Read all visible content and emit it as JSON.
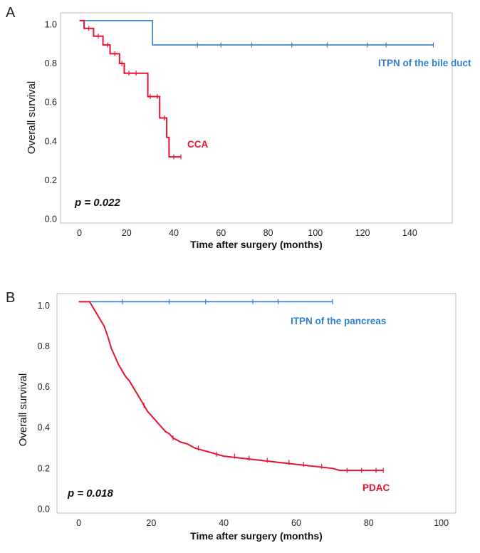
{
  "chart_data": [
    {
      "type": "line",
      "panel_label": "A",
      "xlabel": "Time after surgery (months)",
      "ylabel": "Overall survival",
      "xlim": [
        -8,
        158
      ],
      "ylim": [
        -0.02,
        1.06
      ],
      "x_ticks": [
        0,
        20,
        40,
        60,
        80,
        100,
        120,
        140
      ],
      "y_ticks": [
        0.0,
        0.2,
        0.4,
        0.6,
        0.8,
        1.0
      ],
      "x_tick_labels": [
        "0",
        "20",
        "40",
        "60",
        "80",
        "100",
        "120",
        "140"
      ],
      "y_tick_labels": [
        "0.0",
        "0.2",
        "0.4",
        "0.6",
        "0.8",
        "1.0"
      ],
      "annotation": "p = 0.022",
      "series": [
        {
          "name": "ITPN of the bile duct",
          "color": "#2E7FD0",
          "x": [
            0,
            31,
            31,
            150
          ],
          "y": [
            1.02,
            1.02,
            0.895,
            0.895
          ],
          "censor_x": [
            50,
            60,
            73,
            90,
            105,
            122,
            130,
            150
          ],
          "censor_y": [
            0.895,
            0.895,
            0.895,
            0.895,
            0.895,
            0.895,
            0.895,
            0.895
          ]
        },
        {
          "name": "CCA",
          "color": "#E8112D",
          "x": [
            0,
            2,
            2,
            6,
            6,
            10,
            10,
            13,
            13,
            17,
            17,
            19,
            19,
            29,
            29,
            34,
            34,
            37,
            37,
            38,
            38,
            43
          ],
          "y": [
            1.02,
            1.02,
            0.98,
            0.98,
            0.94,
            0.94,
            0.895,
            0.895,
            0.85,
            0.85,
            0.8,
            0.8,
            0.75,
            0.75,
            0.63,
            0.63,
            0.52,
            0.52,
            0.42,
            0.42,
            0.32,
            0.32
          ],
          "censor_x": [
            4,
            8,
            12,
            15,
            18,
            21,
            24,
            30,
            33,
            36,
            40,
            43
          ],
          "censor_y": [
            0.98,
            0.94,
            0.895,
            0.85,
            0.8,
            0.75,
            0.75,
            0.63,
            0.63,
            0.52,
            0.32,
            0.32
          ]
        }
      ]
    },
    {
      "type": "line",
      "panel_label": "B",
      "xlabel": "Time after surgery (months)",
      "ylabel": "Overall survival",
      "xlim": [
        -6,
        104
      ],
      "ylim": [
        -0.02,
        1.06
      ],
      "x_ticks": [
        0,
        20,
        40,
        60,
        80,
        100
      ],
      "y_ticks": [
        0.0,
        0.2,
        0.4,
        0.6,
        0.8,
        1.0
      ],
      "x_tick_labels": [
        "0",
        "20",
        "40",
        "60",
        "80",
        "100"
      ],
      "y_tick_labels": [
        "0.0",
        "0.2",
        "0.4",
        "0.6",
        "0.8",
        "1.0"
      ],
      "annotation": "p = 0.018",
      "series": [
        {
          "name": "ITPN of the pancreas",
          "color": "#2E7FD0",
          "x": [
            0,
            70
          ],
          "y": [
            1.02,
            1.02
          ],
          "censor_x": [
            12,
            25,
            35,
            48,
            55,
            70
          ],
          "censor_y": [
            1.02,
            1.02,
            1.02,
            1.02,
            1.02,
            1.02
          ]
        },
        {
          "name": "PDAC",
          "color": "#E8112D",
          "x": [
            0,
            3,
            5,
            6,
            7,
            8,
            9,
            10,
            11,
            12,
            13,
            14,
            15,
            16,
            17,
            18,
            19,
            20,
            21,
            22,
            23,
            24,
            25,
            26,
            27,
            28,
            30,
            32,
            34,
            36,
            38,
            40,
            45,
            50,
            55,
            60,
            65,
            70,
            72,
            80,
            84
          ],
          "y": [
            1.02,
            1.02,
            0.96,
            0.93,
            0.9,
            0.85,
            0.79,
            0.75,
            0.71,
            0.68,
            0.65,
            0.63,
            0.6,
            0.57,
            0.54,
            0.51,
            0.48,
            0.46,
            0.44,
            0.42,
            0.4,
            0.38,
            0.37,
            0.35,
            0.34,
            0.33,
            0.32,
            0.3,
            0.29,
            0.28,
            0.27,
            0.26,
            0.25,
            0.24,
            0.23,
            0.22,
            0.21,
            0.2,
            0.19,
            0.19,
            0.19
          ],
          "censor_x": [
            18,
            26,
            33,
            38,
            43,
            47,
            52,
            58,
            62,
            67,
            74,
            78,
            82,
            84
          ],
          "censor_y": [
            0.51,
            0.35,
            0.3,
            0.27,
            0.26,
            0.25,
            0.24,
            0.23,
            0.22,
            0.21,
            0.19,
            0.19,
            0.19,
            0.19
          ]
        }
      ]
    }
  ]
}
